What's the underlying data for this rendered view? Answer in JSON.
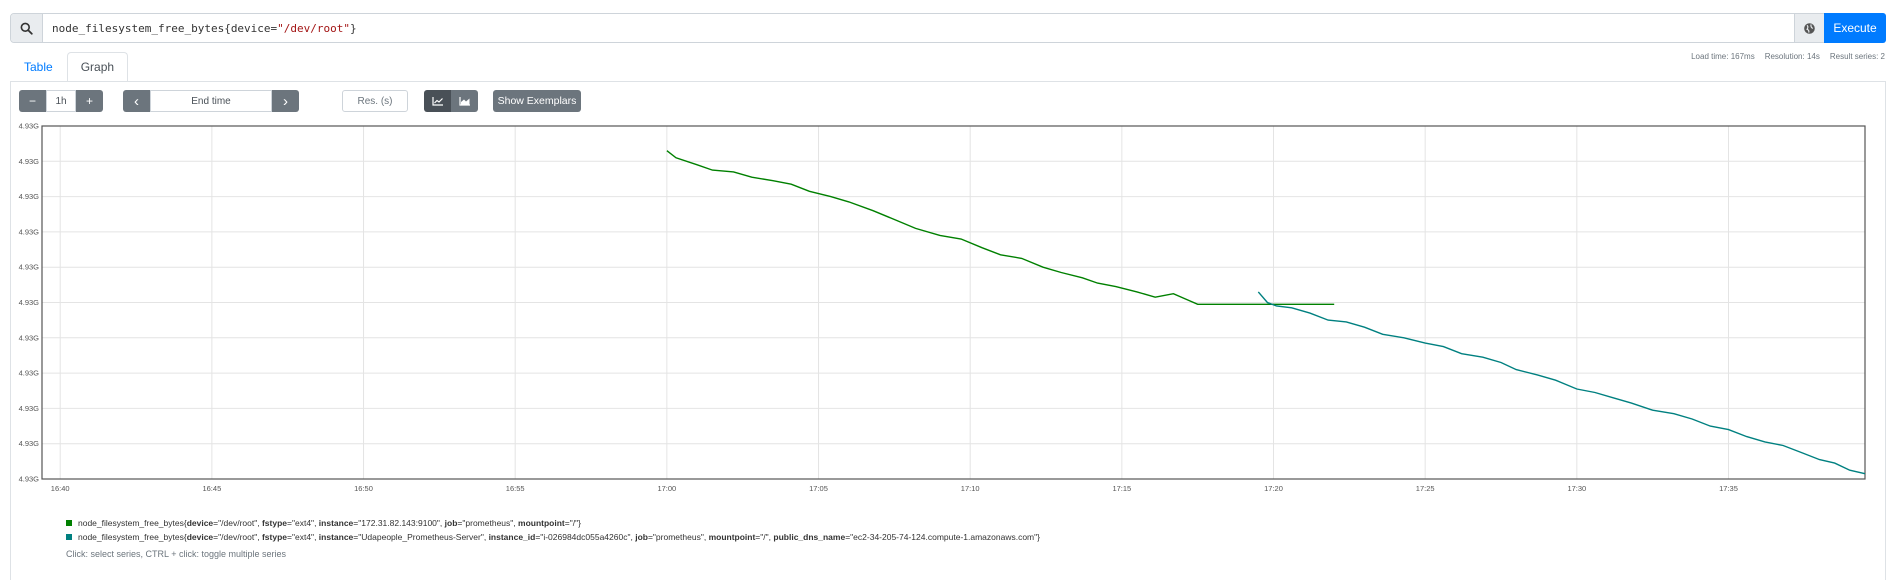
{
  "query": {
    "metric": "node_filesystem_free_bytes",
    "open_brace": "{",
    "label_key": "device=",
    "label_value": "\"/dev/root\"",
    "close_brace": "}",
    "execute_label": "Execute"
  },
  "tabs": [
    {
      "label": "Table",
      "active": false
    },
    {
      "label": "Graph",
      "active": true
    }
  ],
  "stats": {
    "load_time": "Load time: 167ms",
    "resolution": "Resolution: 14s",
    "result_series": "Result series: 2"
  },
  "controls": {
    "minus": "−",
    "range": "1h",
    "plus": "+",
    "prev": "‹",
    "end_time_placeholder": "End time",
    "next": "›",
    "res_placeholder": "Res. (s)",
    "show_exemplars": "Show Exemplars"
  },
  "chart_data": {
    "type": "line",
    "x_ticks": [
      "16:40",
      "16:45",
      "16:50",
      "16:55",
      "17:00",
      "17:05",
      "17:10",
      "17:15",
      "17:20",
      "17:25",
      "17:30",
      "17:35"
    ],
    "y_ticks": [
      "4.93G",
      "4.93G",
      "4.93G",
      "4.93G",
      "4.93G",
      "4.93G",
      "4.93G",
      "4.93G",
      "4.93G",
      "4.93G",
      "4.93G"
    ],
    "x_unit": "minutes after 16:40",
    "y_unit": "relative level (0 = bottom, 10 = top)",
    "xlim": [
      -0.6,
      59.5
    ],
    "ylim": [
      0,
      10
    ],
    "grid": true,
    "series": [
      {
        "color": "#008000",
        "points": [
          [
            20.0,
            9.3
          ],
          [
            20.3,
            9.1
          ],
          [
            21.0,
            8.9
          ],
          [
            21.5,
            8.75
          ],
          [
            22.2,
            8.7
          ],
          [
            22.8,
            8.55
          ],
          [
            23.5,
            8.45
          ],
          [
            24.1,
            8.35
          ],
          [
            24.7,
            8.15
          ],
          [
            25.4,
            8.0
          ],
          [
            26.0,
            7.85
          ],
          [
            26.8,
            7.6
          ],
          [
            27.5,
            7.35
          ],
          [
            28.2,
            7.1
          ],
          [
            29.0,
            6.9
          ],
          [
            29.7,
            6.8
          ],
          [
            30.4,
            6.55
          ],
          [
            31.0,
            6.35
          ],
          [
            31.7,
            6.25
          ],
          [
            32.4,
            6.0
          ],
          [
            33.0,
            5.85
          ],
          [
            33.7,
            5.7
          ],
          [
            34.2,
            5.55
          ],
          [
            34.8,
            5.45
          ],
          [
            35.5,
            5.3
          ],
          [
            36.1,
            5.15
          ],
          [
            36.7,
            5.25
          ],
          [
            37.1,
            5.1
          ],
          [
            37.5,
            4.95
          ],
          [
            38.5,
            4.95
          ],
          [
            42.0,
            4.95
          ]
        ],
        "label_parts": [
          {
            "t": "node_filesystem_free_bytes{",
            "b": false
          },
          {
            "t": "device",
            "b": true
          },
          {
            "t": "=\"/dev/root\", ",
            "b": false
          },
          {
            "t": "fstype",
            "b": true
          },
          {
            "t": "=\"ext4\", ",
            "b": false
          },
          {
            "t": "instance",
            "b": true
          },
          {
            "t": "=\"172.31.82.143:9100\", ",
            "b": false
          },
          {
            "t": "job",
            "b": true
          },
          {
            "t": "=\"prometheus\", ",
            "b": false
          },
          {
            "t": "mountpoint",
            "b": true
          },
          {
            "t": "=\"/\"}",
            "b": false
          }
        ]
      },
      {
        "color": "#008080",
        "points": [
          [
            39.5,
            5.3
          ],
          [
            39.8,
            5.0
          ],
          [
            40.1,
            4.9
          ],
          [
            40.6,
            4.85
          ],
          [
            41.2,
            4.7
          ],
          [
            41.8,
            4.5
          ],
          [
            42.4,
            4.45
          ],
          [
            43.0,
            4.3
          ],
          [
            43.6,
            4.1
          ],
          [
            44.3,
            4.0
          ],
          [
            45.0,
            3.85
          ],
          [
            45.6,
            3.75
          ],
          [
            46.2,
            3.55
          ],
          [
            46.9,
            3.45
          ],
          [
            47.5,
            3.3
          ],
          [
            48.0,
            3.1
          ],
          [
            48.7,
            2.95
          ],
          [
            49.3,
            2.8
          ],
          [
            50.0,
            2.55
          ],
          [
            50.6,
            2.45
          ],
          [
            51.2,
            2.3
          ],
          [
            51.8,
            2.15
          ],
          [
            52.5,
            1.95
          ],
          [
            53.2,
            1.85
          ],
          [
            53.8,
            1.7
          ],
          [
            54.4,
            1.5
          ],
          [
            55.0,
            1.4
          ],
          [
            55.6,
            1.2
          ],
          [
            56.2,
            1.05
          ],
          [
            56.8,
            0.95
          ],
          [
            57.4,
            0.75
          ],
          [
            58.0,
            0.55
          ],
          [
            58.5,
            0.45
          ],
          [
            59.0,
            0.25
          ],
          [
            59.5,
            0.15
          ]
        ],
        "label_parts": [
          {
            "t": "node_filesystem_free_bytes{",
            "b": false
          },
          {
            "t": "device",
            "b": true
          },
          {
            "t": "=\"/dev/root\", ",
            "b": false
          },
          {
            "t": "fstype",
            "b": true
          },
          {
            "t": "=\"ext4\", ",
            "b": false
          },
          {
            "t": "instance",
            "b": true
          },
          {
            "t": "=\"Udapeople_Prometheus-Server\", ",
            "b": false
          },
          {
            "t": "instance_id",
            "b": true
          },
          {
            "t": "=\"i-026984dc055a4260c\", ",
            "b": false
          },
          {
            "t": "job",
            "b": true
          },
          {
            "t": "=\"prometheus\", ",
            "b": false
          },
          {
            "t": "mountpoint",
            "b": true
          },
          {
            "t": "=\"/\", ",
            "b": false
          },
          {
            "t": "public_dns_name",
            "b": true
          },
          {
            "t": "=\"ec2-34-205-74-124.compute-1.amazonaws.com\"}",
            "b": false
          }
        ]
      }
    ]
  },
  "legend_hint": "Click: select series, CTRL + click: toggle multiple series"
}
